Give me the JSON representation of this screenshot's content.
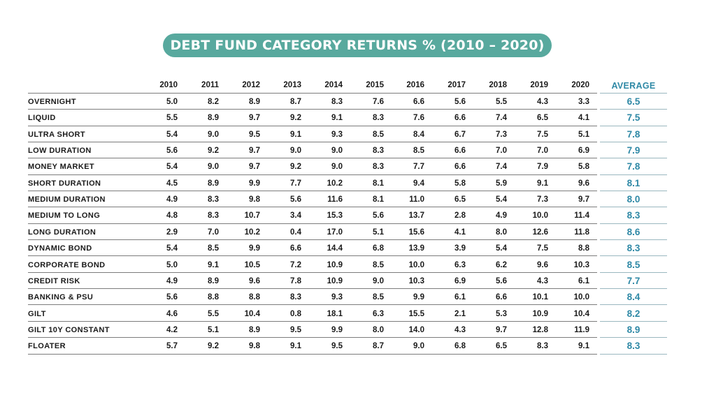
{
  "title": "DEBT FUND CATEGORY RETURNS % (2010 – 2020)",
  "chart_data": {
    "type": "table",
    "title": "DEBT FUND CATEGORY RETURNS % (2010 – 2020)",
    "columns": [
      "2010",
      "2011",
      "2012",
      "2013",
      "2014",
      "2015",
      "2016",
      "2017",
      "2018",
      "2019",
      "2020"
    ],
    "average_label": "AVERAGE",
    "rows": [
      {
        "category": "OVERNIGHT",
        "values": [
          "5.0",
          "8.2",
          "8.9",
          "8.7",
          "8.3",
          "7.6",
          "6.6",
          "5.6",
          "5.5",
          "4.3",
          "3.3"
        ],
        "average": "6.5"
      },
      {
        "category": "LIQUID",
        "values": [
          "5.5",
          "8.9",
          "9.7",
          "9.2",
          "9.1",
          "8.3",
          "7.6",
          "6.6",
          "7.4",
          "6.5",
          "4.1"
        ],
        "average": "7.5"
      },
      {
        "category": "ULTRA SHORT",
        "values": [
          "5.4",
          "9.0",
          "9.5",
          "9.1",
          "9.3",
          "8.5",
          "8.4",
          "6.7",
          "7.3",
          "7.5",
          "5.1"
        ],
        "average": "7.8"
      },
      {
        "category": "LOW DURATION",
        "values": [
          "5.6",
          "9.2",
          "9.7",
          "9.0",
          "9.0",
          "8.3",
          "8.5",
          "6.6",
          "7.0",
          "7.0",
          "6.9"
        ],
        "average": "7.9"
      },
      {
        "category": "MONEY MARKET",
        "values": [
          "5.4",
          "9.0",
          "9.7",
          "9.2",
          "9.0",
          "8.3",
          "7.7",
          "6.6",
          "7.4",
          "7.9",
          "5.8"
        ],
        "average": "7.8"
      },
      {
        "category": "SHORT DURATION",
        "values": [
          "4.5",
          "8.9",
          "9.9",
          "7.7",
          "10.2",
          "8.1",
          "9.4",
          "5.8",
          "5.9",
          "9.1",
          "9.6"
        ],
        "average": "8.1"
      },
      {
        "category": "MEDIUM DURATION",
        "values": [
          "4.9",
          "8.3",
          "9.8",
          "5.6",
          "11.6",
          "8.1",
          "11.0",
          "6.5",
          "5.4",
          "7.3",
          "9.7"
        ],
        "average": "8.0"
      },
      {
        "category": "MEDIUM TO LONG",
        "values": [
          "4.8",
          "8.3",
          "10.7",
          "3.4",
          "15.3",
          "5.6",
          "13.7",
          "2.8",
          "4.9",
          "10.0",
          "11.4"
        ],
        "average": "8.3"
      },
      {
        "category": "LONG DURATION",
        "values": [
          "2.9",
          "7.0",
          "10.2",
          "0.4",
          "17.0",
          "5.1",
          "15.6",
          "4.1",
          "8.0",
          "12.6",
          "11.8"
        ],
        "average": "8.6"
      },
      {
        "category": "DYNAMIC BOND",
        "values": [
          "5.4",
          "8.5",
          "9.9",
          "6.6",
          "14.4",
          "6.8",
          "13.9",
          "3.9",
          "5.4",
          "7.5",
          "8.8"
        ],
        "average": "8.3"
      },
      {
        "category": "CORPORATE BOND",
        "values": [
          "5.0",
          "9.1",
          "10.5",
          "7.2",
          "10.9",
          "8.5",
          "10.0",
          "6.3",
          "6.2",
          "9.6",
          "10.3"
        ],
        "average": "8.5"
      },
      {
        "category": "CREDIT RISK",
        "values": [
          "4.9",
          "8.9",
          "9.6",
          "7.8",
          "10.9",
          "9.0",
          "10.3",
          "6.9",
          "5.6",
          "4.3",
          "6.1"
        ],
        "average": "7.7"
      },
      {
        "category": "BANKING & PSU",
        "values": [
          "5.6",
          "8.8",
          "8.8",
          "8.3",
          "9.3",
          "8.5",
          "9.9",
          "6.1",
          "6.6",
          "10.1",
          "10.0"
        ],
        "average": "8.4"
      },
      {
        "category": "GILT",
        "values": [
          "4.6",
          "5.5",
          "10.4",
          "0.8",
          "18.1",
          "6.3",
          "15.5",
          "2.1",
          "5.3",
          "10.9",
          "10.4"
        ],
        "average": "8.2"
      },
      {
        "category": "GILT 10Y CONSTANT",
        "values": [
          "4.2",
          "5.1",
          "8.9",
          "9.5",
          "9.9",
          "8.0",
          "14.0",
          "4.3",
          "9.7",
          "12.8",
          "11.9"
        ],
        "average": "8.9"
      },
      {
        "category": "FLOATER",
        "values": [
          "5.7",
          "9.2",
          "9.8",
          "9.1",
          "9.5",
          "8.7",
          "9.0",
          "6.8",
          "6.5",
          "8.3",
          "9.1"
        ],
        "average": "8.3"
      }
    ]
  },
  "colors": {
    "title_bg": "#58a99e",
    "title_text": "#ffffff",
    "average_text": "#2f89a6",
    "body_text": "#1a1a1a",
    "row_divider": "#7c7c7c",
    "average_divider": "#9ab7bf"
  }
}
